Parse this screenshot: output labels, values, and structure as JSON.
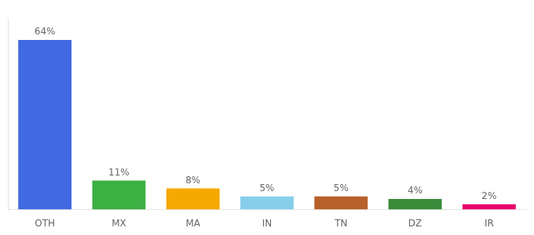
{
  "chart_data": {
    "type": "bar",
    "categories": [
      "OTH",
      "MX",
      "MA",
      "IN",
      "TN",
      "DZ",
      "IR"
    ],
    "values": [
      64,
      11,
      8,
      5,
      5,
      4,
      2
    ],
    "value_labels": [
      "64%",
      "11%",
      "8%",
      "5%",
      "5%",
      "4%",
      "2%"
    ],
    "colors": [
      "#4169e1",
      "#3cb043",
      "#f5a800",
      "#87ceeb",
      "#b8602a",
      "#3a8a3a",
      "#e8006e"
    ],
    "ylim": [
      0,
      72
    ],
    "data_labels": true,
    "tick_labels": "x",
    "grid": false
  }
}
